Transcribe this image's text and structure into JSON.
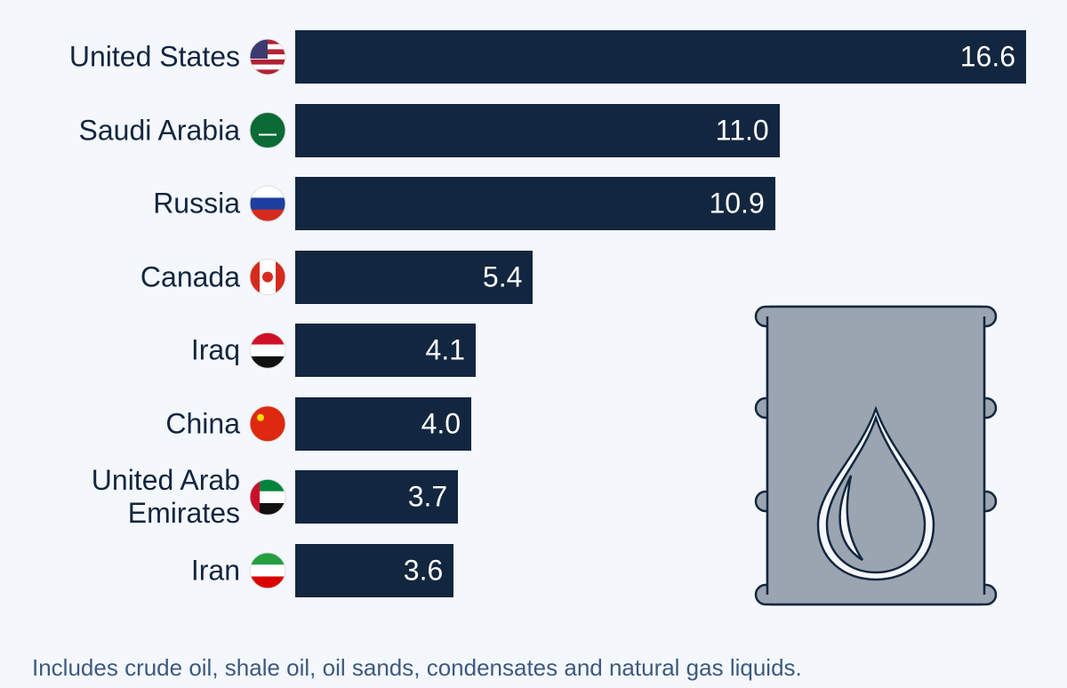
{
  "chart_data": {
    "type": "bar",
    "orientation": "horizontal",
    "color": "#13263f",
    "categories": [
      "United States",
      "Saudi Arabia",
      "Russia",
      "Canada",
      "Iraq",
      "China",
      "United Arab Emirates",
      "Iran"
    ],
    "values": [
      16.6,
      11.0,
      10.9,
      5.4,
      4.1,
      4.0,
      3.7,
      3.6
    ],
    "value_labels": [
      "16.6",
      "11.0",
      "10.9",
      "5.4",
      "4.1",
      "4.0",
      "3.7",
      "3.6"
    ],
    "note": "Includes crude oil, shale oil, oil sands, condensates and natural gas liquids."
  }
}
